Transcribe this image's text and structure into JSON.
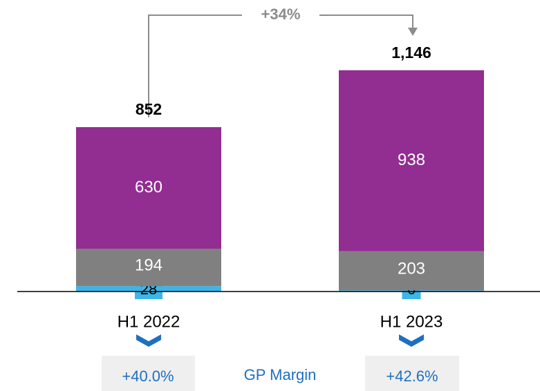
{
  "chart_data": {
    "type": "stacked_bar",
    "categories": [
      "H1 2022",
      "H1 2023"
    ],
    "series": [
      {
        "color": "#3db5e6",
        "values": [
          28,
          6
        ]
      },
      {
        "color": "#808080",
        "values": [
          194,
          203
        ]
      },
      {
        "color": "#922d91",
        "values": [
          630,
          938
        ]
      }
    ],
    "totals": [
      852,
      1146
    ],
    "total_labels": [
      "852",
      "1,146"
    ],
    "growth_annotation": "+34%",
    "margin_label": "GP Margin",
    "margins": [
      "+40.0%",
      "+42.6%"
    ]
  }
}
